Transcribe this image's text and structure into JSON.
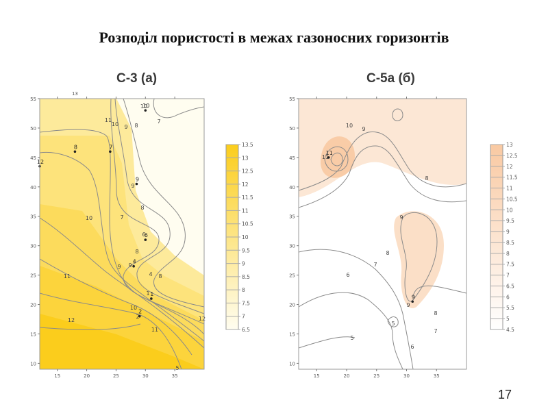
{
  "slide": {
    "title": "Розподіл пористості в межах газоносних горизонтів",
    "page_number": "17"
  },
  "chart_data": [
    {
      "type": "contour",
      "title": "С-3 (а)",
      "x_ticks": [
        "15",
        "20",
        "25",
        "30",
        "35"
      ],
      "y_ticks": [
        "10",
        "15",
        "20",
        "25",
        "30",
        "35",
        "40",
        "45",
        "50",
        "55"
      ],
      "top_tick_label": "13",
      "xlim": [
        12,
        40
      ],
      "ylim": [
        9,
        55
      ],
      "legend_values": [
        "13.5",
        "13",
        "12.5",
        "12",
        "11.5",
        "11",
        "10.5",
        "10",
        "9.5",
        "9",
        "8.5",
        "8",
        "7.5",
        "7",
        "6.5"
      ],
      "color_low": "#fffdf0",
      "color_high": "#fbcd1c",
      "contour_labels": [
        "10",
        "7",
        "11",
        "10",
        "9",
        "8",
        "8",
        "7",
        "9",
        "8",
        "9",
        "10",
        "6",
        "9",
        "4",
        "8",
        "11",
        "10",
        "2",
        "12",
        "11",
        "5",
        "1",
        "12"
      ],
      "wells": [
        {
          "label": "12",
          "x": 12,
          "y": 43.5
        },
        {
          "label": "8",
          "x": 18,
          "y": 46
        },
        {
          "label": "7",
          "x": 24,
          "y": 46
        },
        {
          "label": "10",
          "x": 30,
          "y": 53
        },
        {
          "label": "9",
          "x": 28.5,
          "y": 40.5
        },
        {
          "label": "6",
          "x": 30,
          "y": 31
        },
        {
          "label": "4",
          "x": 28,
          "y": 26.5
        },
        {
          "label": "1",
          "x": 31,
          "y": 21
        },
        {
          "label": "2",
          "x": 29,
          "y": 18
        }
      ]
    },
    {
      "type": "contour",
      "title": "С-5а (б)",
      "x_ticks": [
        "15",
        "20",
        "25",
        "30",
        "35"
      ],
      "y_ticks": [
        "10",
        "15",
        "20",
        "25",
        "30",
        "35",
        "40",
        "45",
        "50",
        "55"
      ],
      "xlim": [
        12,
        40
      ],
      "ylim": [
        9,
        55
      ],
      "legend_values": [
        "13",
        "12.5",
        "12",
        "11.5",
        "11",
        "10.5",
        "10",
        "9.5",
        "9",
        "8.5",
        "8",
        "7.5",
        "7",
        "6.5",
        "6",
        "5.5",
        "5",
        "4.5"
      ],
      "color_low": "#ffffff",
      "color_high": "#f9c9a2",
      "contour_labels": [
        "10",
        "9",
        "11",
        "8",
        "9",
        "8",
        "7",
        "6",
        "9",
        "8",
        "5",
        "7",
        "6",
        "5"
      ],
      "wells": [
        {
          "label": "11",
          "x": 17,
          "y": 45
        },
        {
          "label": "9",
          "x": 31,
          "y": 20.5
        }
      ]
    }
  ]
}
